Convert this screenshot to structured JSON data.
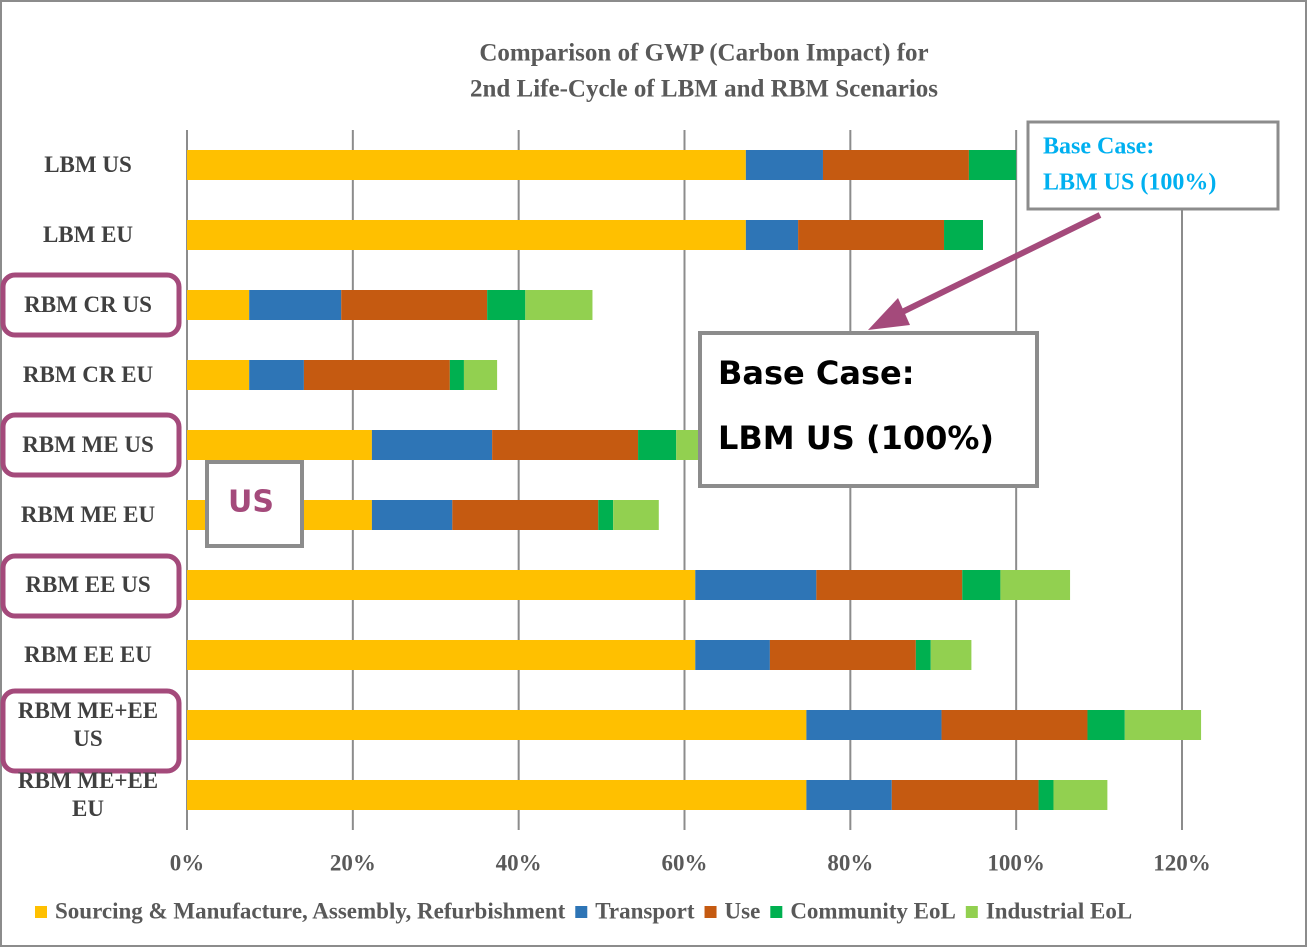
{
  "chart_data": {
    "type": "stacked-barh",
    "title": "Comparison of GWP (Carbon Impact) for",
    "subtitle": "2nd Life-Cycle of LBM and RBM Scenarios",
    "categories": [
      "LBM US",
      "LBM EU",
      "RBM CR US",
      "RBM CR EU",
      "RBM ME US",
      "RBM ME EU",
      "RBM EE US",
      "RBM EE EU",
      "RBM ME+EE US",
      "RBM ME+EE EU"
    ],
    "series": [
      {
        "name": "Sourcing & Manufacture, Assembly, Refurbishment",
        "color": "#ffc000",
        "values": [
          67.4,
          67.4,
          7.5,
          7.5,
          22.3,
          22.3,
          61.3,
          61.3,
          74.7,
          74.7
        ]
      },
      {
        "name": "Transport",
        "color": "#2e75b6",
        "values": [
          9.3,
          6.3,
          11.1,
          6.6,
          14.5,
          9.7,
          14.6,
          9.0,
          16.3,
          10.3
        ]
      },
      {
        "name": "Use",
        "color": "#c55a11",
        "values": [
          17.6,
          17.6,
          17.6,
          17.6,
          17.6,
          17.6,
          17.6,
          17.6,
          17.6,
          17.7
        ]
      },
      {
        "name": "Community EoL",
        "color": "#00b050",
        "values": [
          5.7,
          4.7,
          4.6,
          1.7,
          4.6,
          1.8,
          4.6,
          1.8,
          4.5,
          1.8
        ]
      },
      {
        "name": "Industrial EoL",
        "color": "#92d050",
        "values": [
          0,
          0,
          8.1,
          4.0,
          8.1,
          5.5,
          8.4,
          4.9,
          9.2,
          6.5
        ]
      }
    ],
    "xlim": [
      0,
      120
    ],
    "xticks": [
      {
        "value": 0,
        "label": "0%"
      },
      {
        "value": 20,
        "label": "20%"
      },
      {
        "value": 40,
        "label": "40%"
      },
      {
        "value": 60,
        "label": "60%"
      },
      {
        "value": 80,
        "label": "80%"
      },
      {
        "value": 100,
        "label": "100%"
      },
      {
        "value": 120,
        "label": "120%"
      }
    ],
    "grid": true,
    "legend": "bottom",
    "annotations": [
      "Base Case:",
      "LBM US (100%)",
      "Base Case:",
      "LBM US (100%)",
      "US"
    ]
  }
}
